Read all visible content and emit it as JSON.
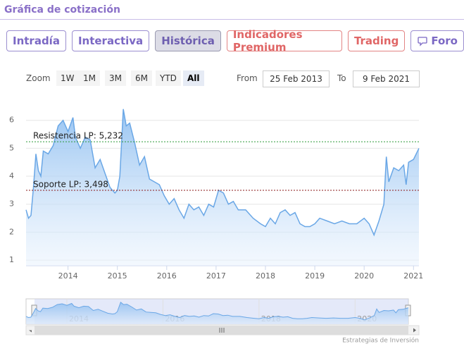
{
  "header": {
    "title": "Gráfica de cotización"
  },
  "tabs": [
    {
      "label": "Intradía",
      "style": "default"
    },
    {
      "label": "Interactiva",
      "style": "default"
    },
    {
      "label": "Histórica",
      "style": "active"
    },
    {
      "label": "Indicadores Premium",
      "style": "premium"
    },
    {
      "label": "Trading",
      "style": "premium"
    },
    {
      "label": "Foro",
      "style": "default",
      "icon": "chat"
    }
  ],
  "range_selector": {
    "zoom_label": "Zoom",
    "buttons": [
      {
        "label": "1W"
      },
      {
        "label": "1M"
      },
      {
        "label": "3M"
      },
      {
        "label": "6M"
      },
      {
        "label": "YTD"
      },
      {
        "label": "All",
        "active": true
      }
    ],
    "from_label": "From",
    "from_value": "25 Feb 2013",
    "to_label": "To",
    "to_value": "9 Feb 2021"
  },
  "chart_data": {
    "type": "area",
    "color": "#6aa7e6",
    "x": [
      2013.15,
      2013.2,
      2013.25,
      2013.3,
      2013.35,
      2013.4,
      2013.45,
      2013.5,
      2013.6,
      2013.7,
      2013.8,
      2013.9,
      2014.0,
      2014.1,
      2014.15,
      2014.25,
      2014.35,
      2014.45,
      2014.55,
      2014.65,
      2014.75,
      2014.85,
      2014.95,
      2015.0,
      2015.05,
      2015.12,
      2015.18,
      2015.25,
      2015.35,
      2015.45,
      2015.55,
      2015.65,
      2015.75,
      2015.85,
      2015.95,
      2016.05,
      2016.15,
      2016.25,
      2016.35,
      2016.45,
      2016.55,
      2016.65,
      2016.75,
      2016.85,
      2016.95,
      2017.05,
      2017.15,
      2017.25,
      2017.35,
      2017.45,
      2017.6,
      2017.75,
      2017.9,
      2018.0,
      2018.1,
      2018.2,
      2018.3,
      2018.4,
      2018.5,
      2018.6,
      2018.7,
      2018.8,
      2018.9,
      2019.0,
      2019.1,
      2019.25,
      2019.4,
      2019.55,
      2019.7,
      2019.85,
      2020.0,
      2020.1,
      2020.2,
      2020.3,
      2020.4,
      2020.45,
      2020.5,
      2020.6,
      2020.7,
      2020.8,
      2020.85,
      2020.9,
      2021.0,
      2021.11
    ],
    "values": [
      2.8,
      2.5,
      2.6,
      3.6,
      4.8,
      4.2,
      4.0,
      4.9,
      4.8,
      5.1,
      5.8,
      6.0,
      5.6,
      6.1,
      5.4,
      5.0,
      5.4,
      5.3,
      4.3,
      4.6,
      4.1,
      3.6,
      3.4,
      3.5,
      4.0,
      6.4,
      5.8,
      5.9,
      5.2,
      4.4,
      4.7,
      3.9,
      3.8,
      3.7,
      3.3,
      3.0,
      3.2,
      2.8,
      2.5,
      3.0,
      2.8,
      2.9,
      2.6,
      3.0,
      2.9,
      3.5,
      3.4,
      3.0,
      3.1,
      2.8,
      2.8,
      2.5,
      2.3,
      2.2,
      2.5,
      2.3,
      2.7,
      2.8,
      2.6,
      2.7,
      2.3,
      2.2,
      2.2,
      2.3,
      2.5,
      2.4,
      2.3,
      2.4,
      2.3,
      2.3,
      2.5,
      2.3,
      1.9,
      2.4,
      3.0,
      4.7,
      3.8,
      4.3,
      4.2,
      4.4,
      3.7,
      4.5,
      4.6,
      5.0
    ],
    "xlim": [
      2013.15,
      2021.11
    ],
    "xticks": [
      2014,
      2015,
      2016,
      2017,
      2018,
      2019,
      2020,
      2021
    ],
    "ylim": [
      0.8,
      6.9
    ],
    "yticks": [
      1,
      2,
      3,
      4,
      5,
      6
    ],
    "grid": true,
    "plot_lines": [
      {
        "label": "Resistencia LP: 5,232",
        "value": 5.232,
        "color": "#2e9a3a"
      },
      {
        "label": "Soporte LP: 3,498",
        "value": 3.498,
        "color": "#8b1a1a"
      }
    ],
    "navigator_xticks": [
      2014,
      2016,
      2018,
      2020
    ],
    "credit": "Estrategias de Inversión"
  }
}
